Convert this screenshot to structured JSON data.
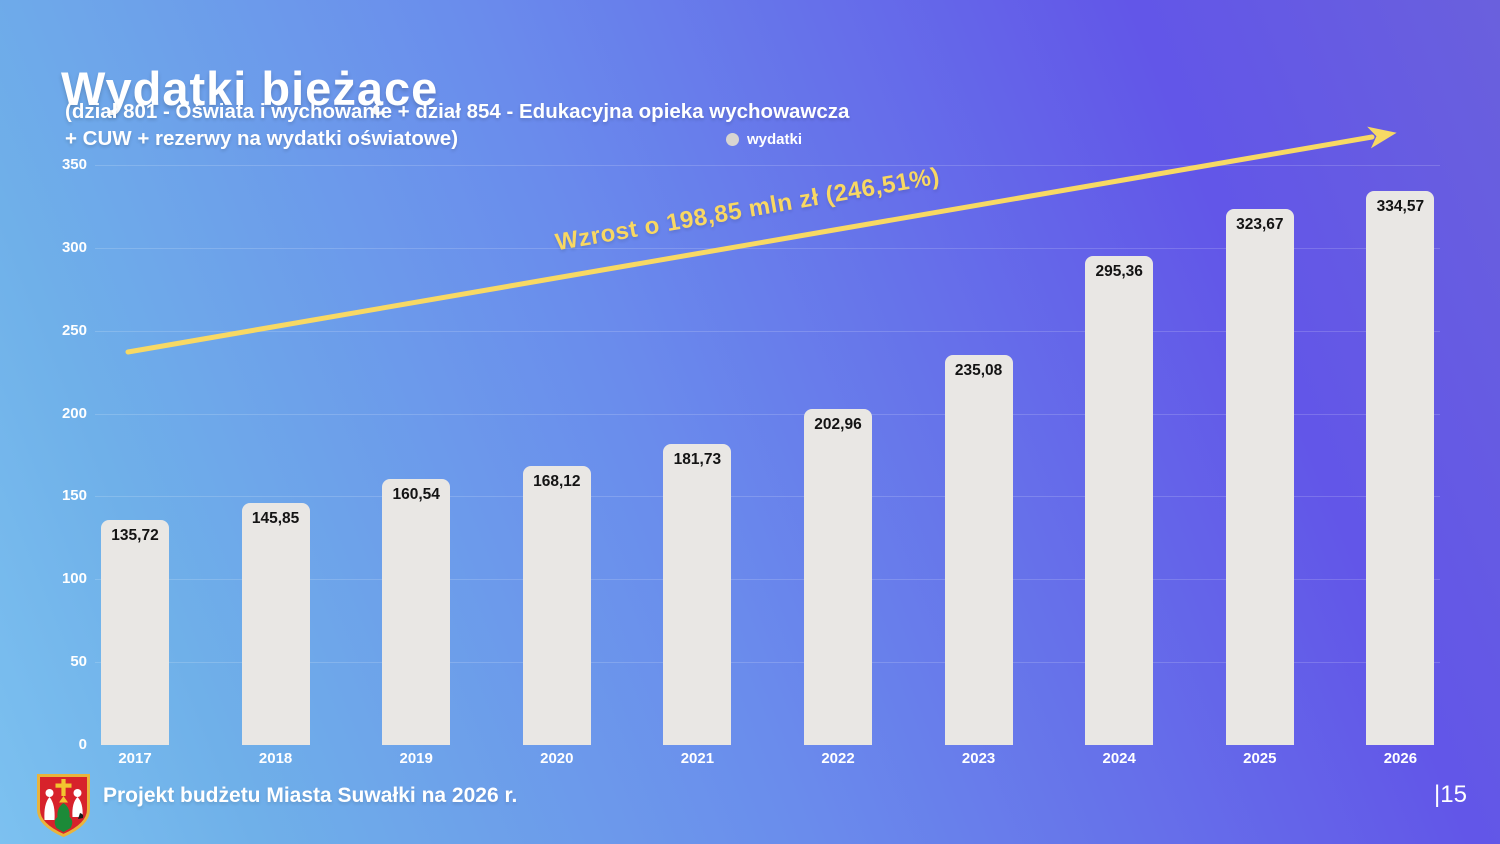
{
  "slide": {
    "title": "Wydatki bieżące",
    "subtitle": "(dział 801 - Oświata i wychowanie + dział 854 - Edukacyjna opieka wychowawcza\n+ CUW + rezerwy na wydatki oświatowe)",
    "footer": "Projekt budżetu Miasta Suwałki na 2026 r.",
    "page_number": "|15"
  },
  "chart_data": {
    "type": "bar",
    "title": "Wydatki bieżące (dział 801 + dział 854 + CUW + rezerwy na wydatki oświatowe)",
    "categories": [
      "2017",
      "2018",
      "2019",
      "2020",
      "2021",
      "2022",
      "2023",
      "2024",
      "2025",
      "2026"
    ],
    "series": [
      {
        "name": "wydatki",
        "values": [
          135.72,
          145.85,
          160.54,
          168.12,
          181.73,
          202.96,
          235.08,
          295.36,
          323.67,
          334.57
        ]
      }
    ],
    "value_labels": [
      "135,72",
      "145,85",
      "160,54",
      "168,12",
      "181,73",
      "202,96",
      "235,08",
      "295,36",
      "323,67",
      "334,57"
    ],
    "xlabel": "",
    "ylabel": "",
    "ylim": [
      0,
      350
    ],
    "yticks": [
      0,
      50,
      100,
      150,
      200,
      250,
      300,
      350
    ],
    "grid": true,
    "legend_position": "top",
    "legend": [
      {
        "label": "wydatki",
        "color": "#d8d5d1"
      }
    ],
    "bar_color": "#e9e7e4",
    "annotation": {
      "text": "Wzrost o 198,85 mln zł (246,51%)",
      "color": "#f9d862"
    }
  }
}
